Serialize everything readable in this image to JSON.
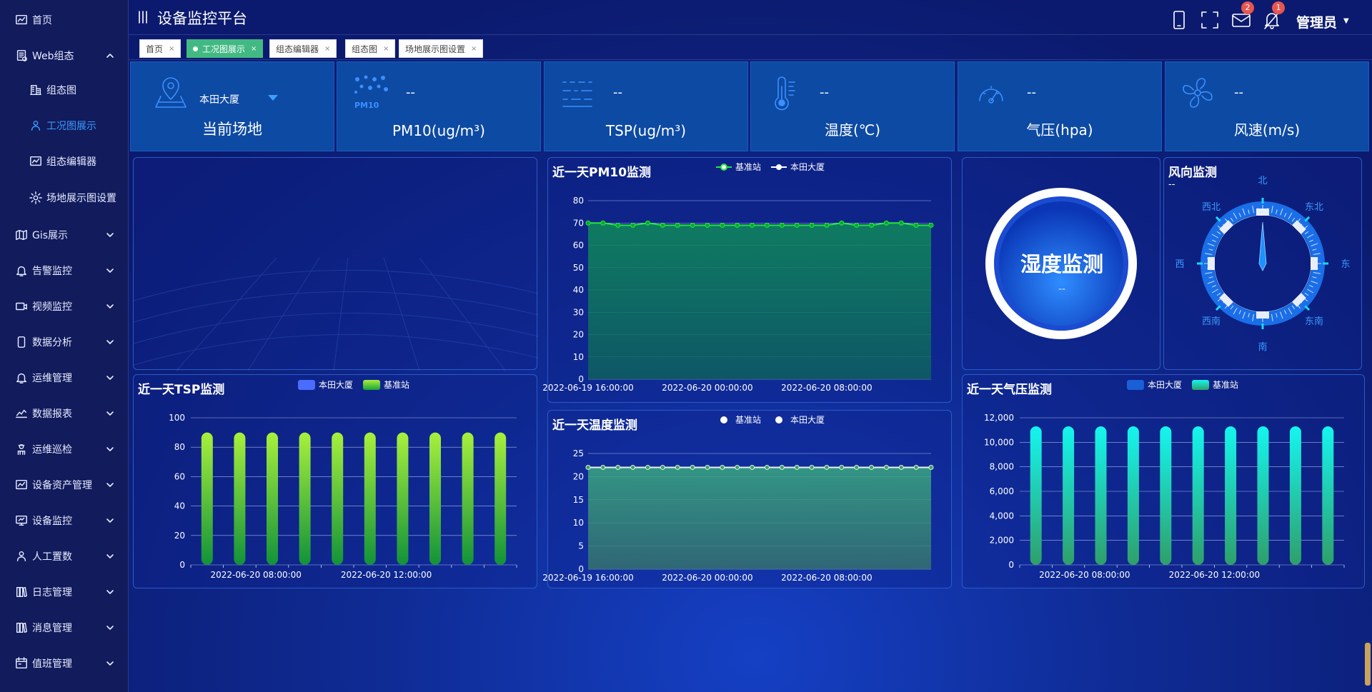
{
  "header": {
    "title": "设备监控平台",
    "user": "管理员",
    "mail_badge": "2",
    "bell_badge": "1"
  },
  "sidebar": {
    "items": [
      {
        "label": "首页",
        "icon": "chart-icon"
      },
      {
        "label": "Web组态",
        "icon": "doc-icon",
        "expanded": true
      },
      {
        "label": "组态图",
        "icon": "building-icon",
        "sub": true
      },
      {
        "label": "工况图展示",
        "icon": "user-icon",
        "sub": true,
        "active": true
      },
      {
        "label": "组态编辑器",
        "icon": "chart-icon",
        "sub": true
      },
      {
        "label": "场地展示图设置",
        "icon": "gear-icon",
        "sub": true
      },
      {
        "label": "Gis展示",
        "icon": "map-icon"
      },
      {
        "label": "告警监控",
        "icon": "bell-icon"
      },
      {
        "label": "视频监控",
        "icon": "video-icon"
      },
      {
        "label": "数据分析",
        "icon": "phone-icon"
      },
      {
        "label": "运维管理",
        "icon": "bell-icon"
      },
      {
        "label": "数据报表",
        "icon": "trend-icon"
      },
      {
        "label": "运维巡检",
        "icon": "worker-icon"
      },
      {
        "label": "设备资产管理",
        "icon": "chart-icon"
      },
      {
        "label": "设备监控",
        "icon": "monitor-icon"
      },
      {
        "label": "人工置数",
        "icon": "user-icon"
      },
      {
        "label": "日志管理",
        "icon": "books-icon"
      },
      {
        "label": "消息管理",
        "icon": "books-icon"
      },
      {
        "label": "值班管理",
        "icon": "calendar-icon"
      }
    ]
  },
  "tabs": [
    {
      "label": "首页",
      "active": false
    },
    {
      "label": "工况图展示",
      "active": true
    },
    {
      "label": "组态编辑器",
      "active": false
    },
    {
      "label": "组态图",
      "active": false
    },
    {
      "label": "场地展示图设置",
      "active": false
    }
  ],
  "cards": {
    "site": {
      "select_value": "本田大厦",
      "label": "当前场地"
    },
    "pm10": {
      "value": "--",
      "label": "PM10(ug/m³)",
      "icon_text": "PM10"
    },
    "tsp": {
      "value": "--",
      "label": "TSP(ug/m³)"
    },
    "temp": {
      "value": "--",
      "label": "温度(℃)"
    },
    "pressure": {
      "value": "--",
      "label": "气压(hpa)"
    },
    "wind": {
      "value": "--",
      "label": "风速(m/s)"
    }
  },
  "humidity": {
    "title": "湿度监测",
    "value": "--"
  },
  "wind_dir": {
    "title": "风向监测",
    "value": "--",
    "directions": [
      "北",
      "东北",
      "东",
      "东南",
      "南",
      "西南",
      "西",
      "西北"
    ]
  },
  "colors": {
    "accent": "#3a9bff",
    "card": "#0d4aa3",
    "tab_active": "#42b983",
    "pm10_line": "#22e83a",
    "tsp_bar": "#a8f03c",
    "pressure_bar": "#15f5ef"
  },
  "chart_data": [
    {
      "id": "pm10",
      "type": "area",
      "title": "近一天PM10监测",
      "series": [
        {
          "name": "基准站",
          "values": [
            70,
            70,
            69,
            69,
            70,
            69,
            69,
            69,
            69,
            69,
            69,
            69,
            69,
            69,
            69,
            69,
            69,
            70,
            69,
            69,
            70,
            70,
            69,
            69
          ]
        },
        {
          "name": "本田大厦",
          "values": []
        }
      ],
      "ylim": [
        0,
        80
      ],
      "yticks": [
        0,
        10,
        20,
        30,
        40,
        50,
        60,
        70,
        80
      ],
      "xtick_labels": [
        "2022-06-19 16:00:00",
        "2022-06-20 00:00:00",
        "2022-06-20 08:00:00"
      ],
      "xtick_index": [
        0,
        8,
        16
      ]
    },
    {
      "id": "temp",
      "type": "area",
      "title": "近一天温度监测",
      "series": [
        {
          "name": "基准站",
          "values": [
            22,
            22,
            22,
            22,
            22,
            22,
            22,
            22,
            22,
            22,
            22,
            22,
            22,
            22,
            22,
            22,
            22,
            22,
            22,
            22,
            22,
            22,
            22,
            22
          ]
        },
        {
          "name": "本田大厦",
          "values": []
        }
      ],
      "ylim": [
        0,
        25
      ],
      "yticks": [
        0,
        5,
        10,
        15,
        20,
        25
      ],
      "xtick_labels": [
        "2022-06-19 16:00:00",
        "2022-06-20 00:00:00",
        "2022-06-20 08:00:00"
      ],
      "xtick_index": [
        0,
        8,
        16
      ]
    },
    {
      "id": "tsp",
      "type": "bar",
      "title": "近一天TSP监测",
      "series": [
        {
          "name": "本田大厦",
          "values": []
        },
        {
          "name": "基准站",
          "values": [
            90,
            90,
            90,
            90,
            90,
            90,
            90,
            90,
            90,
            90
          ]
        }
      ],
      "ylim": [
        0,
        100
      ],
      "yticks": [
        0,
        20,
        40,
        60,
        80,
        100
      ],
      "yticklabels": [
        "0",
        "20",
        "40",
        "60",
        "80",
        "100"
      ],
      "xtick_labels": [
        "2022-06-20 08:00:00",
        "2022-06-20 12:00:00"
      ],
      "xtick_index": [
        2,
        6
      ]
    },
    {
      "id": "pressure",
      "type": "bar",
      "title": "近一天气压监测",
      "series": [
        {
          "name": "本田大厦",
          "values": []
        },
        {
          "name": "基准站",
          "values": [
            11300,
            11300,
            11300,
            11300,
            11300,
            11300,
            11300,
            11300,
            11300,
            11300
          ]
        }
      ],
      "ylim": [
        0,
        12000
      ],
      "yticks": [
        0,
        2000,
        4000,
        6000,
        8000,
        10000,
        12000
      ],
      "yticklabels": [
        "0",
        "2,000",
        "4,000",
        "6,000",
        "8,000",
        "10,000",
        "12,000"
      ],
      "xtick_labels": [
        "2022-06-20 08:00:00",
        "2022-06-20 12:00:00"
      ],
      "xtick_index": [
        2,
        6
      ]
    }
  ]
}
